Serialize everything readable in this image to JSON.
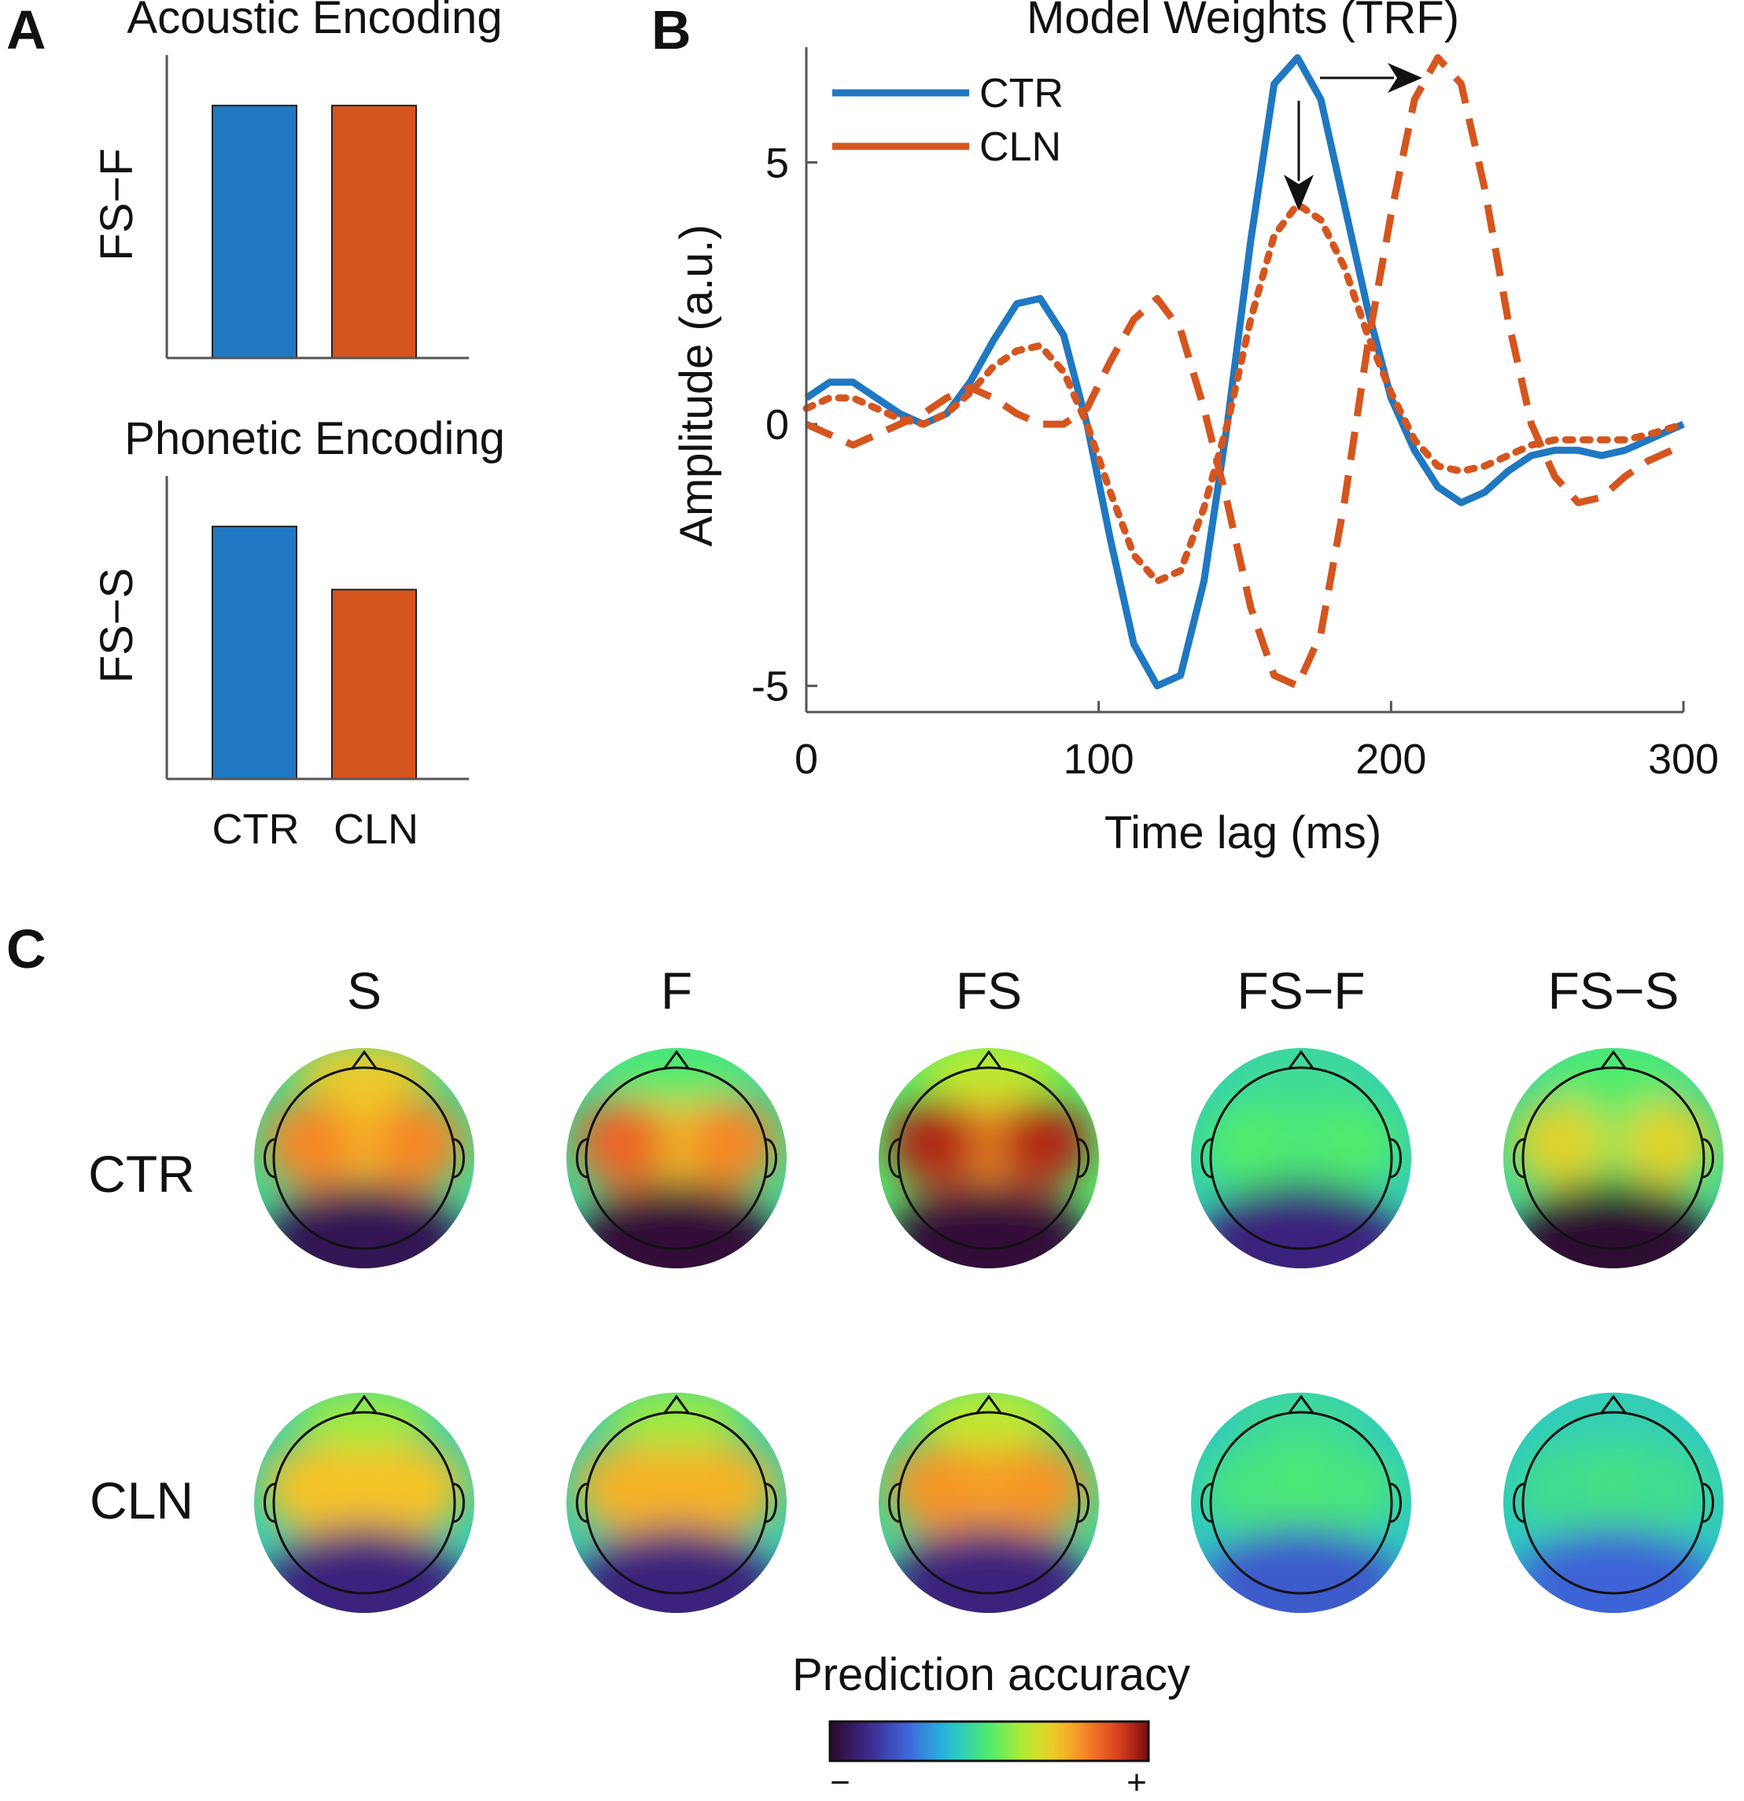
{
  "panels": {
    "A": "A",
    "B": "B",
    "C": "C"
  },
  "colors": {
    "ctr": "#1f78c1",
    "cln": "#d5551e",
    "axis": "#555555"
  },
  "chart_data": [
    {
      "id": "acoustic",
      "type": "bar",
      "title": "Acoustic Encoding",
      "ylabel": "FS−F",
      "categories": [
        "CTR",
        "CLN"
      ],
      "values": [
        1.0,
        1.0
      ],
      "ylim": [
        0,
        1.2
      ],
      "show_category_labels": false
    },
    {
      "id": "phonetic",
      "type": "bar",
      "title": "Phonetic Encoding",
      "ylabel": "FS−S",
      "categories": [
        "CTR",
        "CLN"
      ],
      "values": [
        1.0,
        0.75
      ],
      "ylim": [
        0,
        1.2
      ],
      "show_category_labels": true
    },
    {
      "id": "trf",
      "type": "line",
      "title": "Model Weights (TRF)",
      "xlabel": "Time lag (ms)",
      "ylabel": "Amplitude (a.u.)",
      "xlim": [
        0,
        300
      ],
      "ylim": [
        -5.5,
        7.2
      ],
      "xticks": [
        0,
        100,
        200,
        300
      ],
      "yticks": [
        -5,
        0,
        5
      ],
      "legend": {
        "position": "top-left",
        "entries": [
          "CTR",
          "CLN"
        ]
      },
      "series": [
        {
          "name": "CTR",
          "color": "#1f78c1",
          "style": "solid",
          "in_legend": true,
          "x": [
            0,
            8,
            16,
            24,
            32,
            40,
            48,
            56,
            64,
            72,
            80,
            88,
            96,
            104,
            112,
            120,
            128,
            136,
            144,
            152,
            160,
            168,
            176,
            184,
            192,
            200,
            208,
            216,
            224,
            232,
            240,
            248,
            256,
            264,
            272,
            280,
            288,
            300
          ],
          "values": [
            0.5,
            0.8,
            0.8,
            0.5,
            0.2,
            0.0,
            0.2,
            0.8,
            1.6,
            2.3,
            2.4,
            1.7,
            0.0,
            -2.2,
            -4.2,
            -5.0,
            -4.8,
            -3.0,
            0.0,
            3.5,
            6.5,
            7.0,
            6.2,
            4.2,
            2.2,
            0.5,
            -0.5,
            -1.2,
            -1.5,
            -1.3,
            -0.9,
            -0.6,
            -0.5,
            -0.5,
            -0.6,
            -0.5,
            -0.3,
            0.0
          ]
        },
        {
          "name": "CLN",
          "color": "#d5551e",
          "style": "dashed",
          "in_legend": true,
          "x": [
            0,
            8,
            16,
            24,
            32,
            40,
            48,
            56,
            64,
            72,
            80,
            88,
            96,
            104,
            112,
            120,
            128,
            136,
            144,
            152,
            160,
            168,
            176,
            184,
            192,
            200,
            208,
            216,
            224,
            232,
            240,
            248,
            256,
            264,
            272,
            280,
            288,
            300
          ],
          "values": [
            0.0,
            -0.2,
            -0.4,
            -0.2,
            0.0,
            0.2,
            0.5,
            0.7,
            0.5,
            0.2,
            0.0,
            0.0,
            0.3,
            1.2,
            2.0,
            2.4,
            1.8,
            0.3,
            -1.5,
            -3.5,
            -4.8,
            -5.0,
            -4.0,
            -1.5,
            1.5,
            4.0,
            6.2,
            7.0,
            6.5,
            4.5,
            2.0,
            0.0,
            -1.0,
            -1.5,
            -1.4,
            -1.0,
            -0.7,
            -0.4
          ]
        },
        {
          "name": "CLN (dotted)",
          "color": "#d5551e",
          "style": "dotted",
          "in_legend": false,
          "x": [
            0,
            8,
            16,
            24,
            32,
            40,
            48,
            56,
            64,
            72,
            80,
            88,
            96,
            104,
            112,
            120,
            128,
            136,
            144,
            152,
            160,
            168,
            176,
            184,
            192,
            200,
            208,
            216,
            224,
            232,
            240,
            248,
            256,
            264,
            272,
            280,
            288,
            300
          ],
          "values": [
            0.3,
            0.5,
            0.5,
            0.3,
            0.1,
            0.0,
            0.2,
            0.6,
            1.1,
            1.4,
            1.5,
            1.0,
            0.0,
            -1.3,
            -2.5,
            -3.0,
            -2.8,
            -1.6,
            0.0,
            2.0,
            3.6,
            4.2,
            3.9,
            3.0,
            1.7,
            0.6,
            -0.3,
            -0.8,
            -0.9,
            -0.8,
            -0.6,
            -0.4,
            -0.3,
            -0.3,
            -0.3,
            -0.3,
            -0.2,
            0.0
          ]
        }
      ],
      "annotations": [
        {
          "type": "arrow",
          "from": [
            176,
            7.0
          ],
          "to": [
            214,
            7.0
          ],
          "meaning": "latency shift"
        },
        {
          "type": "arrow",
          "from": [
            168,
            6.8
          ],
          "to": [
            168,
            4.4
          ],
          "meaning": "amplitude reduction"
        }
      ]
    },
    {
      "id": "topomaps",
      "type": "heatmap",
      "title": "Prediction accuracy",
      "columns": [
        "S",
        "F",
        "FS",
        "FS−F",
        "FS−S"
      ],
      "rows": [
        "CTR",
        "CLN"
      ],
      "colorbar": {
        "min_label": "−",
        "max_label": "+",
        "colormap": "turbo"
      },
      "maps": [
        [
          {
            "front": 0.7,
            "mid_left": 0.8,
            "mid_right": 0.8,
            "center": 0.72,
            "back": 0.05,
            "rim": 0.45
          },
          {
            "front": 0.5,
            "mid_left": 0.85,
            "mid_right": 0.8,
            "center": 0.7,
            "back": 0.02,
            "rim": 0.45
          },
          {
            "front": 0.62,
            "mid_left": 0.95,
            "mid_right": 0.95,
            "center": 0.78,
            "back": 0.02,
            "rim": 0.5
          },
          {
            "front": 0.45,
            "mid_left": 0.5,
            "mid_right": 0.5,
            "center": 0.48,
            "back": 0.1,
            "rim": 0.42
          },
          {
            "front": 0.5,
            "mid_left": 0.68,
            "mid_right": 0.68,
            "center": 0.52,
            "back": 0.01,
            "rim": 0.45
          }
        ],
        [
          {
            "front": 0.58,
            "mid_left": 0.72,
            "mid_right": 0.72,
            "center": 0.72,
            "back": 0.1,
            "rim": 0.42
          },
          {
            "front": 0.58,
            "mid_left": 0.74,
            "mid_right": 0.74,
            "center": 0.74,
            "back": 0.1,
            "rim": 0.42
          },
          {
            "front": 0.62,
            "mid_left": 0.78,
            "mid_right": 0.78,
            "center": 0.76,
            "back": 0.1,
            "rim": 0.45
          },
          {
            "front": 0.45,
            "mid_left": 0.48,
            "mid_right": 0.48,
            "center": 0.5,
            "back": 0.22,
            "rim": 0.4
          },
          {
            "front": 0.42,
            "mid_left": 0.46,
            "mid_right": 0.46,
            "center": 0.48,
            "back": 0.24,
            "rim": 0.4
          }
        ]
      ]
    }
  ]
}
